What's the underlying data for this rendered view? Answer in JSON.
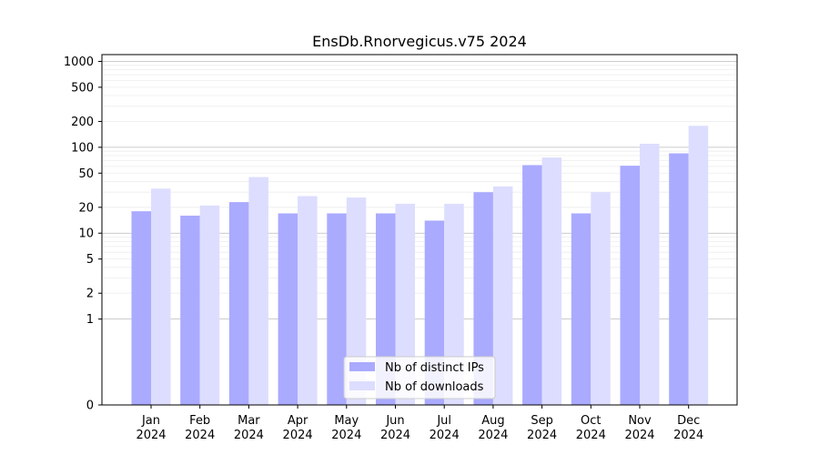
{
  "chart_data": {
    "type": "bar",
    "title": "EnsDb.Rnorvegicus.v75 2024",
    "xlabel": "",
    "ylabel": "",
    "y_scale": "symlog",
    "ylim": [
      0,
      1200
    ],
    "y_ticks": [
      0,
      1,
      2,
      5,
      10,
      20,
      50,
      100,
      200,
      500,
      1000
    ],
    "y_tick_labels": [
      "0",
      "1",
      "2",
      "5",
      "10",
      "20",
      "50",
      "100",
      "200",
      "500",
      "1000"
    ],
    "grid": true,
    "legend_position": "bottom-center",
    "categories": [
      [
        "Jan",
        "2024"
      ],
      [
        "Feb",
        "2024"
      ],
      [
        "Mar",
        "2024"
      ],
      [
        "Apr",
        "2024"
      ],
      [
        "May",
        "2024"
      ],
      [
        "Jun",
        "2024"
      ],
      [
        "Jul",
        "2024"
      ],
      [
        "Aug",
        "2024"
      ],
      [
        "Sep",
        "2024"
      ],
      [
        "Oct",
        "2024"
      ],
      [
        "Nov",
        "2024"
      ],
      [
        "Dec",
        "2024"
      ]
    ],
    "series": [
      {
        "name": "Nb of distinct IPs",
        "color": "#aaaaff",
        "values": [
          18,
          16,
          23,
          17,
          17,
          17,
          14,
          30,
          62,
          17,
          61,
          85
        ]
      },
      {
        "name": "Nb of downloads",
        "color": "#ddddff",
        "values": [
          33,
          21,
          45,
          27,
          26,
          22,
          22,
          35,
          76,
          30,
          110,
          178
        ]
      }
    ]
  }
}
